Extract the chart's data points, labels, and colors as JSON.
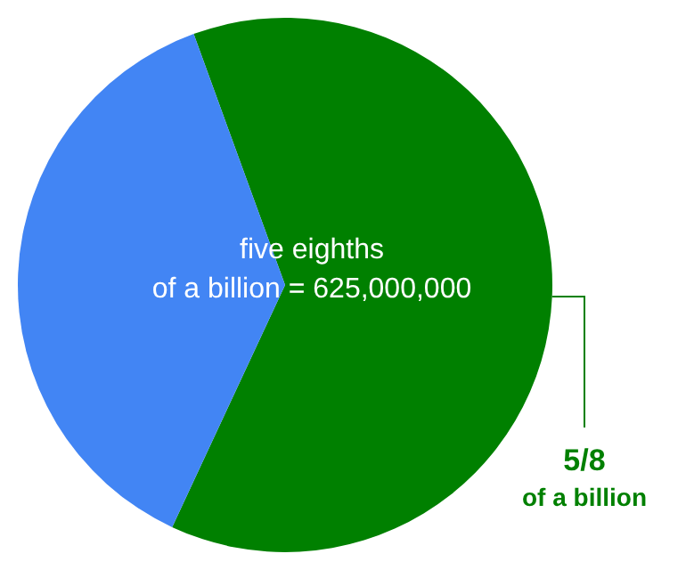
{
  "chart_data": {
    "type": "pie",
    "categories": [
      "5/8 of a billion",
      null
    ],
    "values": [
      62.5,
      37.5
    ],
    "colors": [
      "#008000",
      "#4285f4"
    ],
    "annotations": [
      "five eighths of a billion = 625,000,000"
    ]
  }
}
